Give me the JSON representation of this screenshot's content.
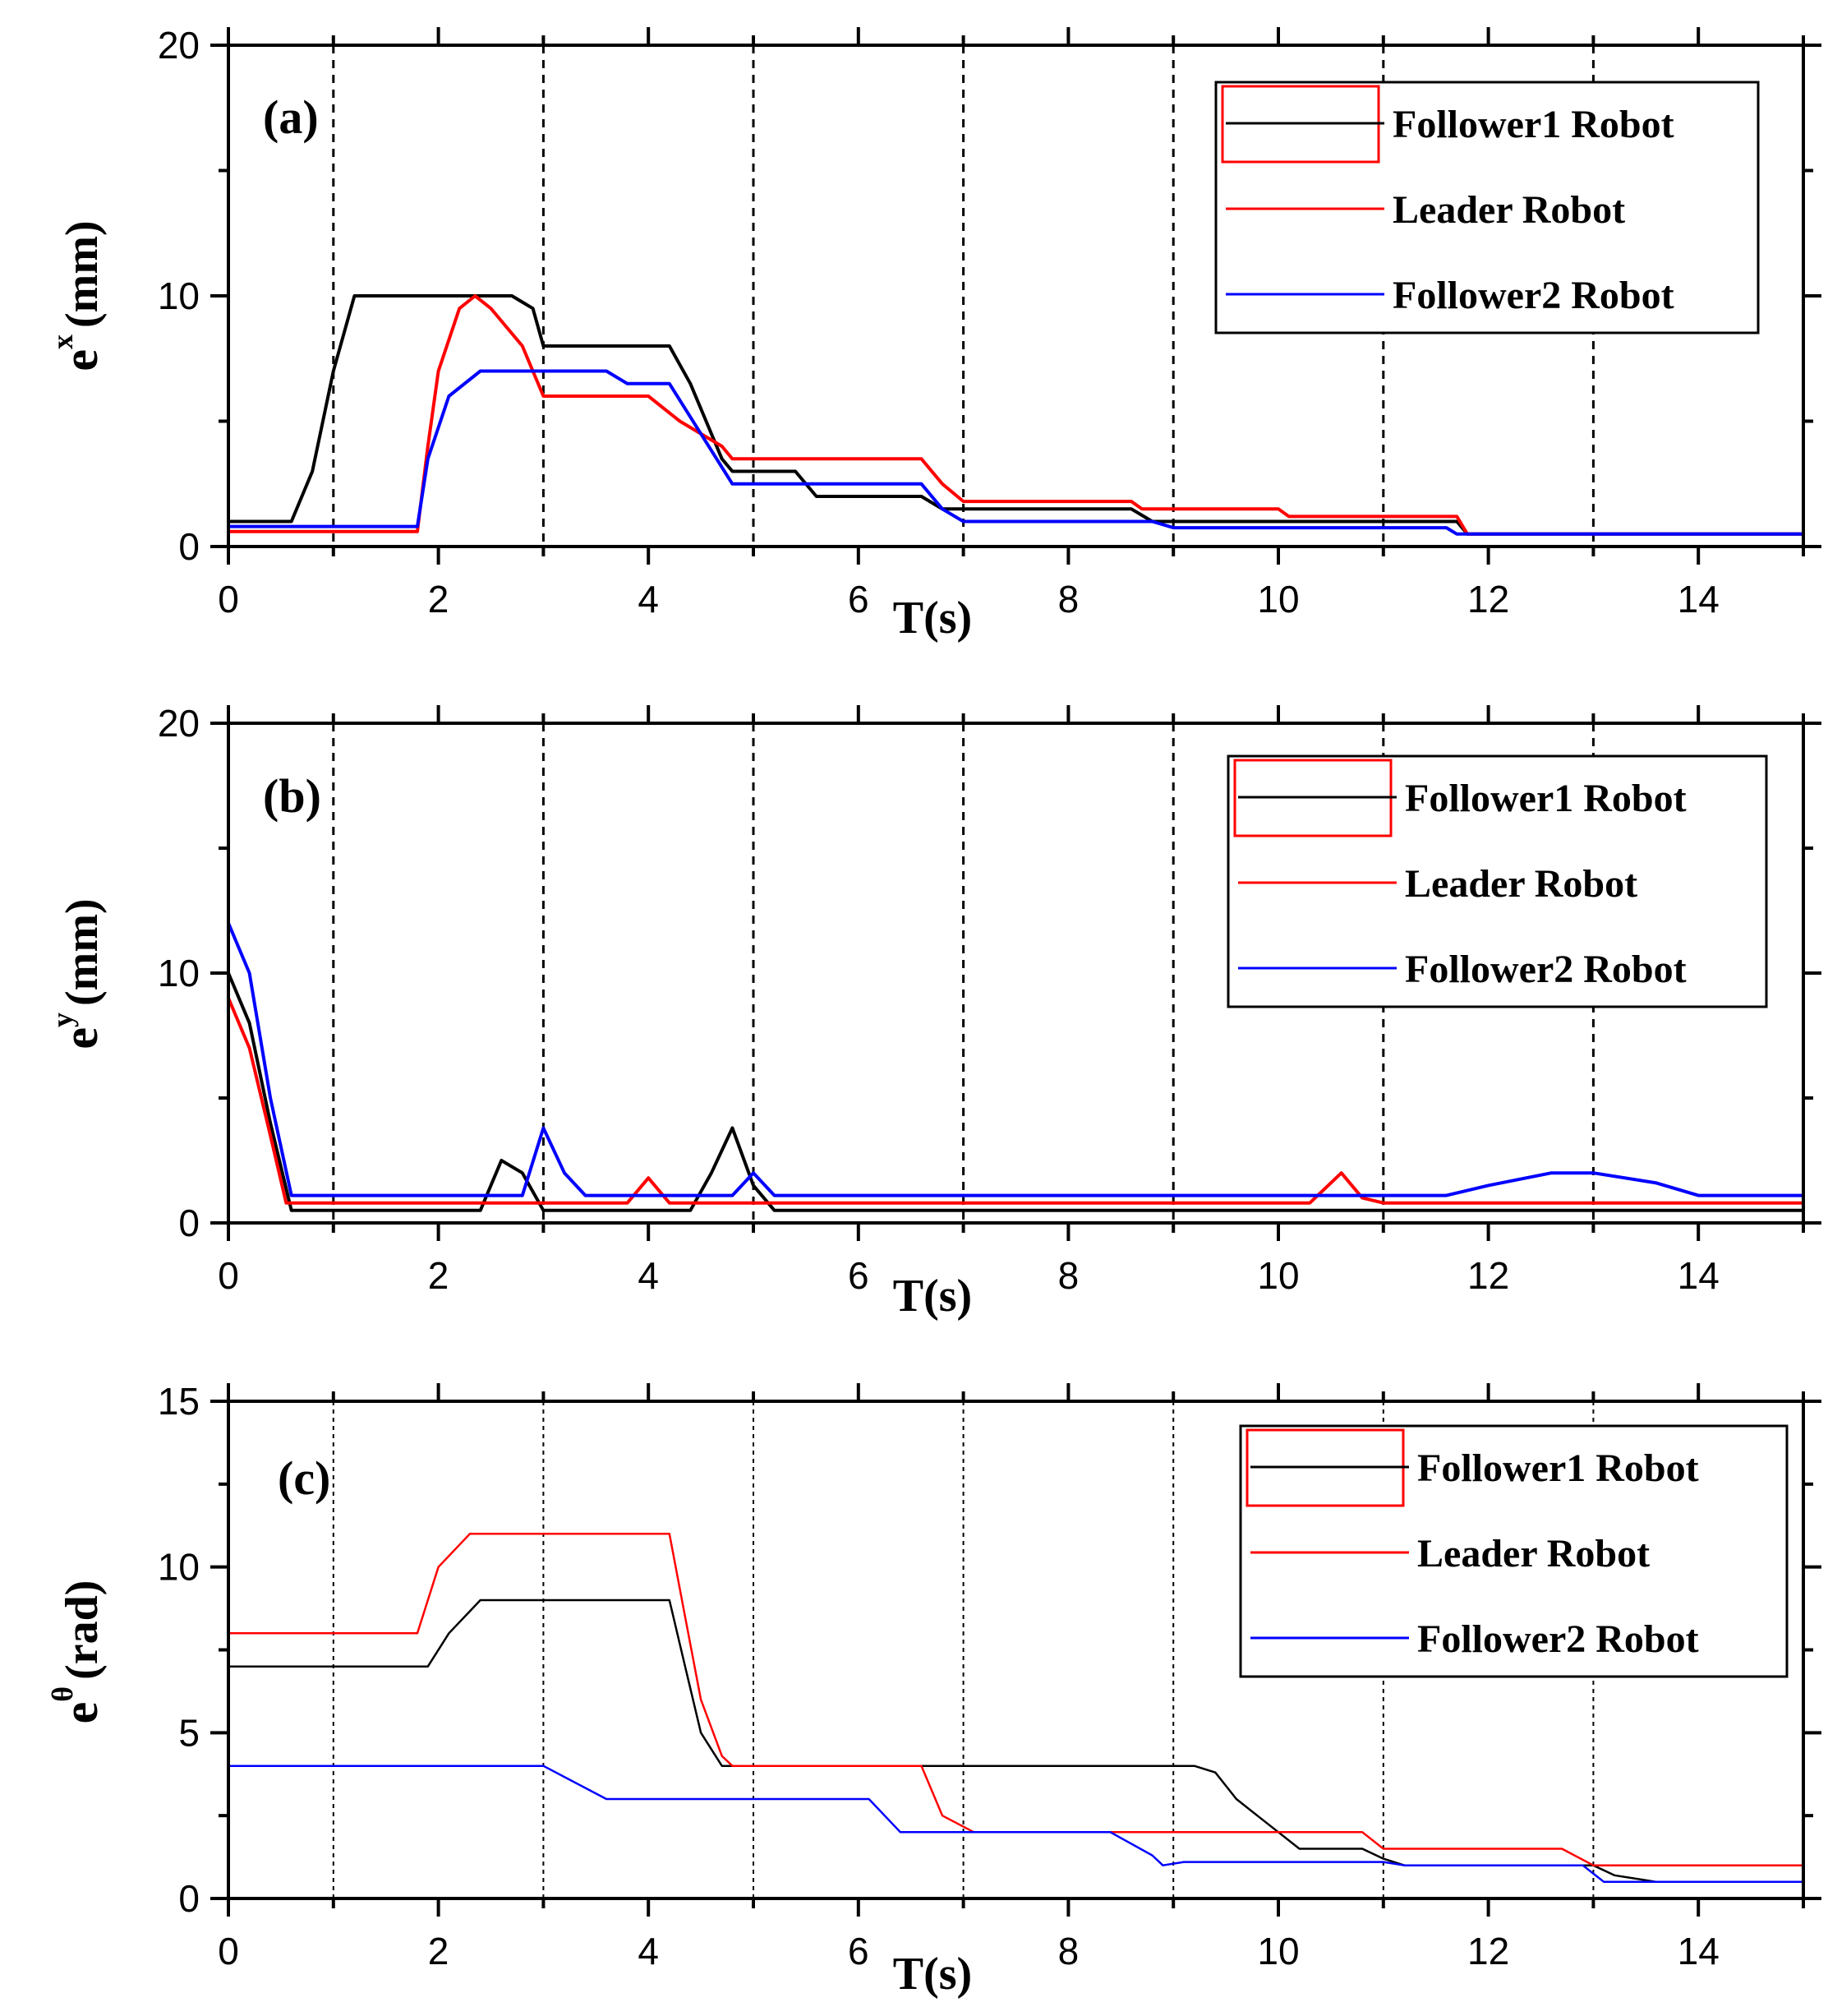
{
  "chart_data": [
    {
      "type": "line",
      "panel_label": "(a)",
      "xlabel": "T(s)",
      "ylabel_base": "e",
      "ylabel_sup": "x",
      "ylabel_unit": "(mm)",
      "xlim": [
        0,
        15
      ],
      "ylim": [
        0,
        20
      ],
      "xticks": [
        0,
        2,
        4,
        6,
        8,
        10,
        12,
        14
      ],
      "yticks": [
        0,
        10,
        20
      ],
      "vlines": [
        1,
        3,
        5,
        7,
        9,
        11,
        13
      ],
      "legend": [
        "Follower1 Robot",
        "Leader Robot",
        "Follower2 Robot"
      ],
      "series": [
        {
          "name": "Follower1 Robot",
          "color": "#000000",
          "points": [
            [
              0,
              1
            ],
            [
              0.6,
              1
            ],
            [
              0.8,
              3
            ],
            [
              1.0,
              7
            ],
            [
              1.2,
              10
            ],
            [
              2.7,
              10
            ],
            [
              2.9,
              9.5
            ],
            [
              3.0,
              8
            ],
            [
              4.2,
              8
            ],
            [
              4.4,
              6.5
            ],
            [
              4.7,
              3.5
            ],
            [
              4.8,
              3
            ],
            [
              5.4,
              3
            ],
            [
              5.6,
              2
            ],
            [
              6.6,
              2
            ],
            [
              6.8,
              1.5
            ],
            [
              8.6,
              1.5
            ],
            [
              8.8,
              1
            ],
            [
              11.7,
              1
            ],
            [
              11.8,
              0.5
            ],
            [
              15,
              0.5
            ]
          ]
        },
        {
          "name": "Leader Robot",
          "color": "#ff0000",
          "points": [
            [
              0,
              0.6
            ],
            [
              1.8,
              0.6
            ],
            [
              1.9,
              4
            ],
            [
              2.0,
              7
            ],
            [
              2.2,
              9.5
            ],
            [
              2.35,
              10
            ],
            [
              2.5,
              9.5
            ],
            [
              2.8,
              8
            ],
            [
              3.0,
              6
            ],
            [
              4.0,
              6
            ],
            [
              4.3,
              5
            ],
            [
              4.7,
              4
            ],
            [
              4.8,
              3.5
            ],
            [
              6.6,
              3.5
            ],
            [
              6.8,
              2.5
            ],
            [
              7.0,
              1.8
            ],
            [
              8.6,
              1.8
            ],
            [
              8.7,
              1.5
            ],
            [
              10.0,
              1.5
            ],
            [
              10.1,
              1.2
            ],
            [
              11.7,
              1.2
            ],
            [
              11.8,
              0.5
            ],
            [
              15,
              0.5
            ]
          ]
        },
        {
          "name": "Follower2 Robot",
          "color": "#0000ff",
          "points": [
            [
              0,
              0.8
            ],
            [
              1.8,
              0.8
            ],
            [
              1.9,
              3.5
            ],
            [
              2.1,
              6
            ],
            [
              2.4,
              7
            ],
            [
              3.6,
              7
            ],
            [
              3.8,
              6.5
            ],
            [
              4.2,
              6.5
            ],
            [
              4.5,
              4.5
            ],
            [
              4.8,
              2.5
            ],
            [
              6.6,
              2.5
            ],
            [
              6.8,
              1.5
            ],
            [
              7.0,
              1
            ],
            [
              8.8,
              1
            ],
            [
              9.0,
              0.75
            ],
            [
              11.6,
              0.75
            ],
            [
              11.7,
              0.5
            ],
            [
              15,
              0.5
            ]
          ]
        }
      ]
    },
    {
      "type": "line",
      "panel_label": "(b)",
      "xlabel": "T(s)",
      "ylabel_base": "e",
      "ylabel_sup": "y",
      "ylabel_unit": "(mm)",
      "xlim": [
        0,
        15
      ],
      "ylim": [
        0,
        20
      ],
      "xticks": [
        0,
        2,
        4,
        6,
        8,
        10,
        12,
        14
      ],
      "yticks": [
        0,
        10,
        20
      ],
      "vlines": [
        1,
        3,
        5,
        7,
        9,
        11,
        13
      ],
      "legend": [
        "Follower1 Robot",
        "Leader Robot",
        "Follower2 Robot"
      ],
      "series": [
        {
          "name": "Follower1 Robot",
          "color": "#000000",
          "points": [
            [
              0,
              10
            ],
            [
              0.2,
              8
            ],
            [
              0.4,
              4
            ],
            [
              0.6,
              0.5
            ],
            [
              2.4,
              0.5
            ],
            [
              2.6,
              2.5
            ],
            [
              2.8,
              2
            ],
            [
              3.0,
              0.5
            ],
            [
              4.4,
              0.5
            ],
            [
              4.6,
              2
            ],
            [
              4.8,
              3.8
            ],
            [
              5.0,
              1.5
            ],
            [
              5.2,
              0.5
            ],
            [
              15,
              0.5
            ]
          ]
        },
        {
          "name": "Leader Robot",
          "color": "#ff0000",
          "points": [
            [
              0,
              9
            ],
            [
              0.2,
              7
            ],
            [
              0.4,
              3.5
            ],
            [
              0.55,
              0.8
            ],
            [
              3.8,
              0.8
            ],
            [
              4.0,
              1.8
            ],
            [
              4.2,
              0.8
            ],
            [
              10.3,
              0.8
            ],
            [
              10.6,
              2
            ],
            [
              10.8,
              1
            ],
            [
              11.0,
              0.8
            ],
            [
              15,
              0.8
            ]
          ]
        },
        {
          "name": "Follower2 Robot",
          "color": "#0000ff",
          "points": [
            [
              0,
              12
            ],
            [
              0.2,
              10
            ],
            [
              0.4,
              5
            ],
            [
              0.6,
              1.1
            ],
            [
              2.8,
              1.1
            ],
            [
              3.0,
              3.8
            ],
            [
              3.2,
              2
            ],
            [
              3.4,
              1.1
            ],
            [
              4.8,
              1.1
            ],
            [
              5.0,
              2
            ],
            [
              5.2,
              1.1
            ],
            [
              11.6,
              1.1
            ],
            [
              12.0,
              1.5
            ],
            [
              12.6,
              2
            ],
            [
              13.0,
              2
            ],
            [
              13.6,
              1.6
            ],
            [
              14.0,
              1.1
            ],
            [
              15,
              1.1
            ]
          ]
        }
      ]
    },
    {
      "type": "line",
      "panel_label": "(c)",
      "xlabel": "T(s)",
      "ylabel_base": "e",
      "ylabel_sup": "θ",
      "ylabel_unit": "(rad)",
      "xlim": [
        0,
        15
      ],
      "ylim": [
        0,
        15
      ],
      "xticks": [
        0,
        2,
        4,
        6,
        8,
        10,
        12,
        14
      ],
      "yticks": [
        0,
        5,
        10,
        15
      ],
      "vlines": [
        1,
        3,
        5,
        7,
        9,
        11,
        13
      ],
      "legend": [
        "Follower1 Robot",
        "Leader Robot",
        "Follower2 Robot"
      ],
      "series": [
        {
          "name": "Follower1 Robot",
          "color": "#000000",
          "points": [
            [
              0,
              7
            ],
            [
              1.9,
              7
            ],
            [
              2.1,
              8
            ],
            [
              2.4,
              9
            ],
            [
              4.2,
              9
            ],
            [
              4.35,
              7
            ],
            [
              4.5,
              5
            ],
            [
              4.7,
              4
            ],
            [
              9.2,
              4
            ],
            [
              9.4,
              3.8
            ],
            [
              9.6,
              3
            ],
            [
              9.8,
              2.5
            ],
            [
              10.0,
              2
            ],
            [
              10.2,
              1.5
            ],
            [
              10.8,
              1.5
            ],
            [
              11.0,
              1.2
            ],
            [
              11.2,
              1
            ],
            [
              13.0,
              1
            ],
            [
              13.2,
              0.7
            ],
            [
              13.6,
              0.5
            ],
            [
              15,
              0.5
            ]
          ]
        },
        {
          "name": "Leader Robot",
          "color": "#ff0000",
          "points": [
            [
              0,
              8
            ],
            [
              1.8,
              8
            ],
            [
              2.0,
              10
            ],
            [
              2.3,
              11
            ],
            [
              4.2,
              11
            ],
            [
              4.35,
              8.5
            ],
            [
              4.5,
              6
            ],
            [
              4.7,
              4.3
            ],
            [
              4.8,
              4
            ],
            [
              6.6,
              4
            ],
            [
              6.8,
              2.5
            ],
            [
              7.1,
              2
            ],
            [
              9.0,
              2
            ],
            [
              10.8,
              2
            ],
            [
              11.0,
              1.5
            ],
            [
              12.7,
              1.5
            ],
            [
              13.0,
              1
            ],
            [
              15,
              1
            ]
          ]
        },
        {
          "name": "Follower2 Robot",
          "color": "#0000ff",
          "points": [
            [
              0,
              4
            ],
            [
              3.0,
              4
            ],
            [
              3.6,
              3
            ],
            [
              6.1,
              3
            ],
            [
              6.4,
              2
            ],
            [
              8.4,
              2
            ],
            [
              8.8,
              1.3
            ],
            [
              8.9,
              1
            ],
            [
              9.1,
              1.1
            ],
            [
              11.0,
              1.1
            ],
            [
              11.2,
              1
            ],
            [
              12.9,
              1
            ],
            [
              13.1,
              0.5
            ],
            [
              15,
              0.5
            ]
          ]
        }
      ]
    }
  ]
}
